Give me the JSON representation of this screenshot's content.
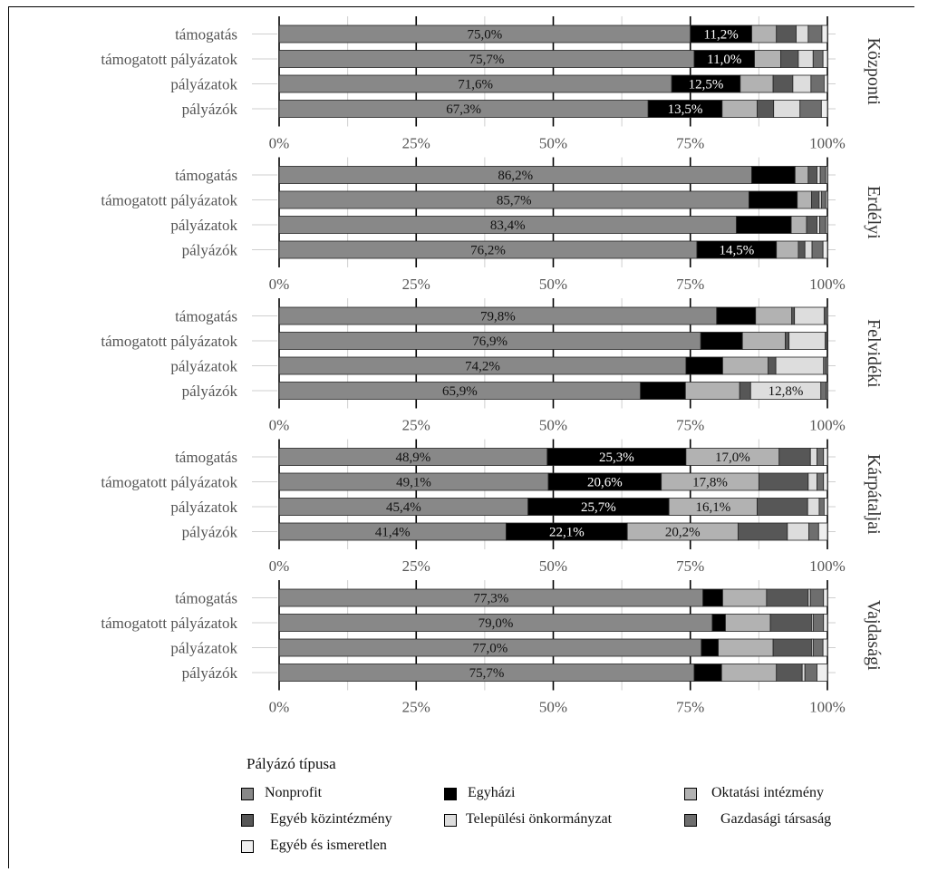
{
  "chart_data": {
    "type": "bar",
    "orientation": "horizontal-stacked",
    "x_tick_labels": [
      "0%",
      "25%",
      "50%",
      "75%",
      "100%"
    ],
    "xlim": [
      0,
      100
    ],
    "grid": true,
    "legend_position": "bottom",
    "legend_title": "Pályázó típusa",
    "series": [
      {
        "name": "Nonprofit",
        "color": "#888888"
      },
      {
        "name": "Egyházi",
        "color": "#000000"
      },
      {
        "name": "Oktatási intézmény",
        "color": "#b2b2b2"
      },
      {
        "name": "Egyéb közintézmény",
        "color": "#575757"
      },
      {
        "name": "Települési önkormányzat",
        "color": "#dddddd"
      },
      {
        "name": "Gazdasági társaság",
        "color": "#6e6e6e"
      },
      {
        "name": "Egyéb és ismeretlen",
        "color": "#efefef"
      }
    ],
    "panels": [
      {
        "name": "Központi",
        "rows": [
          {
            "category": "támogatás",
            "values": [
              75.0,
              11.2,
              4.5,
              3.6,
              2.2,
              2.5,
              1.0
            ],
            "labels": [
              "75,0%",
              "11,2%",
              "",
              "",
              "",
              "",
              ""
            ]
          },
          {
            "category": "támogatott pályázatok",
            "values": [
              75.7,
              11.0,
              4.8,
              3.2,
              2.7,
              1.8,
              0.8
            ],
            "labels": [
              "75,7%",
              "11,0%",
              "",
              "",
              "",
              "",
              ""
            ]
          },
          {
            "category": "pályázatok",
            "values": [
              71.6,
              12.5,
              6.0,
              3.6,
              3.3,
              2.4,
              0.6
            ],
            "labels": [
              "71,6%",
              "12,5%",
              "",
              "",
              "",
              "",
              ""
            ]
          },
          {
            "category": "pályázók",
            "values": [
              67.3,
              13.5,
              6.4,
              3.0,
              4.8,
              3.9,
              1.1
            ],
            "labels": [
              "67,3%",
              "13,5%",
              "",
              "",
              "",
              "",
              ""
            ]
          }
        ]
      },
      {
        "name": "Erdélyi",
        "rows": [
          {
            "category": "támogatás",
            "values": [
              86.2,
              7.9,
              2.4,
              1.6,
              0.6,
              1.0,
              0.3
            ],
            "labels": [
              "86,2%",
              "",
              "",
              "",
              "",
              "",
              ""
            ]
          },
          {
            "category": "támogatott pályázatok",
            "values": [
              85.7,
              8.8,
              2.6,
              1.4,
              0.4,
              0.8,
              0.3
            ],
            "labels": [
              "85,7%",
              "",
              "",
              "",
              "",
              "",
              ""
            ]
          },
          {
            "category": "pályázatok",
            "values": [
              83.4,
              10.0,
              2.8,
              1.9,
              0.5,
              1.1,
              0.3
            ],
            "labels": [
              "83,4%",
              "",
              "",
              "",
              "",
              "",
              ""
            ]
          },
          {
            "category": "pályázók",
            "values": [
              76.2,
              14.5,
              4.0,
              1.2,
              1.3,
              2.0,
              0.8
            ],
            "labels": [
              "76,2%",
              "14,5%",
              "",
              "",
              "",
              "",
              ""
            ]
          }
        ]
      },
      {
        "name": "Felvidéki",
        "rows": [
          {
            "category": "támogatás",
            "values": [
              79.8,
              7.1,
              6.6,
              0.5,
              5.4,
              0.4,
              0.2
            ],
            "labels": [
              "79,8%",
              "",
              "",
              "",
              "",
              "",
              ""
            ]
          },
          {
            "category": "támogatott pályázatok",
            "values": [
              76.9,
              7.6,
              7.8,
              0.7,
              6.6,
              0.3,
              0.1
            ],
            "labels": [
              "76,9%",
              "",
              "",
              "",
              "",
              "",
              ""
            ]
          },
          {
            "category": "pályázatok",
            "values": [
              74.2,
              6.7,
              8.3,
              1.4,
              8.7,
              0.5,
              0.2
            ],
            "labels": [
              "74,2%",
              "",
              "",
              "",
              "",
              "",
              ""
            ]
          },
          {
            "category": "pályázók",
            "values": [
              65.9,
              8.2,
              9.9,
              2.0,
              12.8,
              1.0,
              0.2
            ],
            "labels": [
              "65,9%",
              "",
              "",
              "",
              "12,8%",
              "",
              ""
            ]
          }
        ]
      },
      {
        "name": "Kárpátaljai",
        "rows": [
          {
            "category": "támogatás",
            "values": [
              48.9,
              25.3,
              17.0,
              5.7,
              1.2,
              1.2,
              0.7
            ],
            "labels": [
              "48,9%",
              "25,3%",
              "17,0%",
              "",
              "",
              "",
              ""
            ]
          },
          {
            "category": "támogatott pályázatok",
            "values": [
              49.1,
              20.6,
              17.8,
              9.0,
              1.6,
              1.2,
              0.7
            ],
            "labels": [
              "49,1%",
              "20,6%",
              "17,8%",
              "",
              "",
              "",
              ""
            ]
          },
          {
            "category": "pályázatok",
            "values": [
              45.4,
              25.7,
              16.1,
              9.2,
              2.1,
              0.9,
              0.6
            ],
            "labels": [
              "45,4%",
              "25,7%",
              "16,1%",
              "",
              "",
              "",
              ""
            ]
          },
          {
            "category": "pályázók",
            "values": [
              41.4,
              22.1,
              20.2,
              9.0,
              3.9,
              1.8,
              1.6
            ],
            "labels": [
              "41,4%",
              "22,1%",
              "20,2%",
              "",
              "",
              "",
              ""
            ]
          }
        ]
      },
      {
        "name": "Vajdasági",
        "rows": [
          {
            "category": "támogatás",
            "values": [
              77.3,
              3.6,
              8.0,
              7.6,
              0.4,
              2.4,
              0.7
            ],
            "labels": [
              "77,3%",
              "",
              "",
              "",
              "",
              "",
              ""
            ]
          },
          {
            "category": "támogatott pályázatok",
            "values": [
              79.0,
              2.4,
              8.2,
              7.5,
              0.3,
              1.9,
              0.7
            ],
            "labels": [
              "79,0%",
              "",
              "",
              "",
              "",
              "",
              ""
            ]
          },
          {
            "category": "pályázatok",
            "values": [
              77.0,
              3.1,
              10.0,
              7.0,
              0.3,
              1.8,
              0.8
            ],
            "labels": [
              "77,0%",
              "",
              "",
              "",
              "",
              "",
              ""
            ]
          },
          {
            "category": "pályázók",
            "values": [
              75.7,
              5.0,
              10.0,
              4.7,
              0.5,
              2.2,
              1.9
            ],
            "labels": [
              "75,7%",
              "",
              "",
              "",
              "",
              "",
              ""
            ]
          }
        ]
      }
    ]
  }
}
